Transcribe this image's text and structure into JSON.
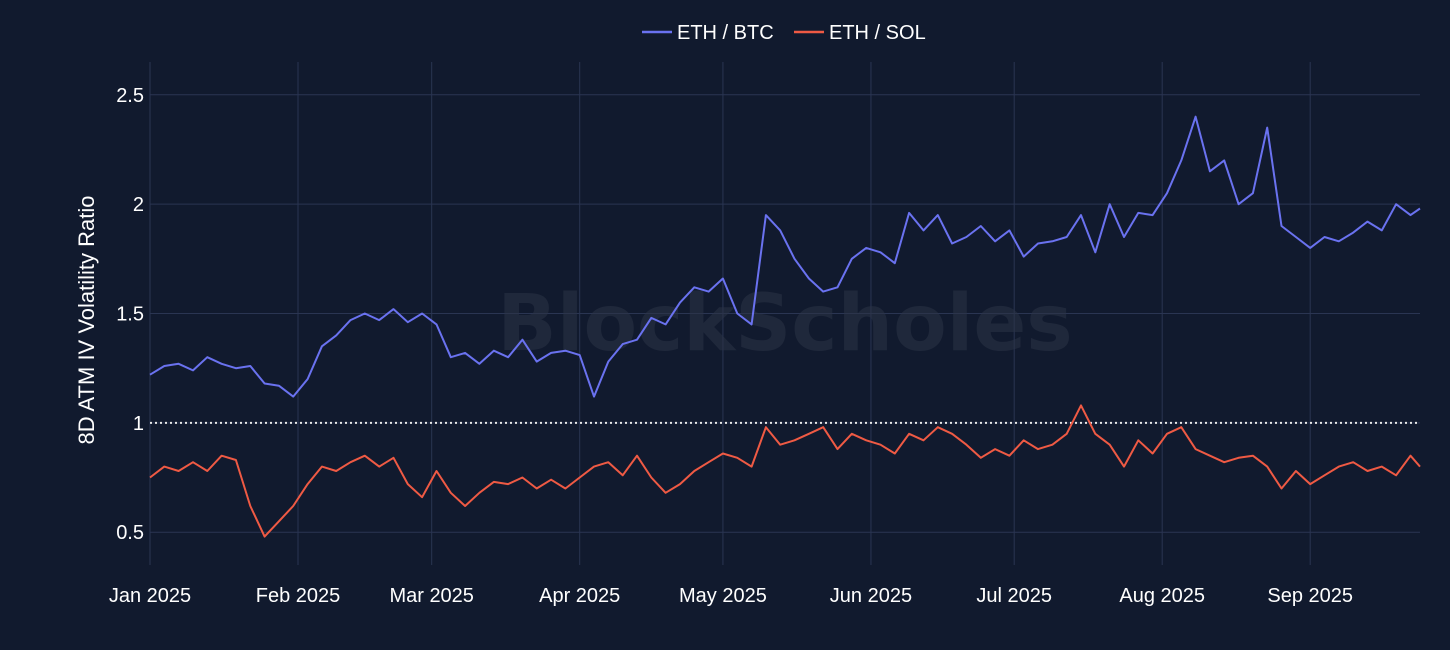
{
  "watermark": "BlockScholes",
  "colors": {
    "background": "#111a2e",
    "grid": "#2a3552",
    "reference_line": "#e8e8e8",
    "eth_btc": "#6a72f0",
    "eth_sol": "#ef5a44"
  },
  "chart_data": {
    "type": "line",
    "title": "",
    "xlabel": "",
    "ylabel": "8D ATM IV Volatility Ratio",
    "xlim": [
      "2025-01-01",
      "2025-09-24"
    ],
    "ylim": [
      0.35,
      2.65
    ],
    "x_ticks": [
      {
        "date": "2025-01-01",
        "label": "Jan 2025"
      },
      {
        "date": "2025-02-01",
        "label": "Feb 2025"
      },
      {
        "date": "2025-03-01",
        "label": "Mar 2025"
      },
      {
        "date": "2025-04-01",
        "label": "Apr 2025"
      },
      {
        "date": "2025-05-01",
        "label": "May 2025"
      },
      {
        "date": "2025-06-01",
        "label": "Jun 2025"
      },
      {
        "date": "2025-07-01",
        "label": "Jul 2025"
      },
      {
        "date": "2025-08-01",
        "label": "Aug 2025"
      },
      {
        "date": "2025-09-01",
        "label": "Sep 2025"
      }
    ],
    "y_ticks": [
      {
        "value": 0.5,
        "label": "0.5"
      },
      {
        "value": 1,
        "label": "1"
      },
      {
        "value": 1.5,
        "label": "1.5"
      },
      {
        "value": 2,
        "label": "2"
      },
      {
        "value": 2.5,
        "label": "2.5"
      }
    ],
    "reference_line": {
      "y": 1,
      "style": "dotted"
    },
    "grid": true,
    "legend": {
      "position": "top-center",
      "orientation": "horizontal"
    },
    "series": [
      {
        "name": "ETH / BTC",
        "color": "#6a72f0",
        "x": [
          "2025-01-01",
          "2025-01-04",
          "2025-01-07",
          "2025-01-10",
          "2025-01-13",
          "2025-01-16",
          "2025-01-19",
          "2025-01-22",
          "2025-01-25",
          "2025-01-28",
          "2025-01-31",
          "2025-02-03",
          "2025-02-06",
          "2025-02-09",
          "2025-02-12",
          "2025-02-15",
          "2025-02-18",
          "2025-02-21",
          "2025-02-24",
          "2025-02-27",
          "2025-03-02",
          "2025-03-05",
          "2025-03-08",
          "2025-03-11",
          "2025-03-14",
          "2025-03-17",
          "2025-03-20",
          "2025-03-23",
          "2025-03-26",
          "2025-03-29",
          "2025-04-01",
          "2025-04-04",
          "2025-04-07",
          "2025-04-10",
          "2025-04-13",
          "2025-04-16",
          "2025-04-19",
          "2025-04-22",
          "2025-04-25",
          "2025-04-28",
          "2025-05-01",
          "2025-05-04",
          "2025-05-07",
          "2025-05-10",
          "2025-05-13",
          "2025-05-16",
          "2025-05-19",
          "2025-05-22",
          "2025-05-25",
          "2025-05-28",
          "2025-05-31",
          "2025-06-03",
          "2025-06-06",
          "2025-06-09",
          "2025-06-12",
          "2025-06-15",
          "2025-06-18",
          "2025-06-21",
          "2025-06-24",
          "2025-06-27",
          "2025-06-30",
          "2025-07-03",
          "2025-07-06",
          "2025-07-09",
          "2025-07-12",
          "2025-07-15",
          "2025-07-18",
          "2025-07-21",
          "2025-07-24",
          "2025-07-27",
          "2025-07-30",
          "2025-08-02",
          "2025-08-05",
          "2025-08-08",
          "2025-08-11",
          "2025-08-14",
          "2025-08-17",
          "2025-08-20",
          "2025-08-23",
          "2025-08-26",
          "2025-08-29",
          "2025-09-01",
          "2025-09-04",
          "2025-09-07",
          "2025-09-10",
          "2025-09-13",
          "2025-09-16",
          "2025-09-19",
          "2025-09-22",
          "2025-09-24"
        ],
        "y": [
          1.22,
          1.26,
          1.27,
          1.24,
          1.3,
          1.27,
          1.25,
          1.26,
          1.18,
          1.17,
          1.12,
          1.2,
          1.35,
          1.4,
          1.47,
          1.5,
          1.47,
          1.52,
          1.46,
          1.5,
          1.45,
          1.3,
          1.32,
          1.27,
          1.33,
          1.3,
          1.38,
          1.28,
          1.32,
          1.33,
          1.31,
          1.12,
          1.28,
          1.36,
          1.38,
          1.48,
          1.45,
          1.55,
          1.62,
          1.6,
          1.66,
          1.5,
          1.45,
          1.95,
          1.88,
          1.75,
          1.66,
          1.6,
          1.62,
          1.75,
          1.8,
          1.78,
          1.73,
          1.96,
          1.88,
          1.95,
          1.82,
          1.85,
          1.9,
          1.83,
          1.88,
          1.76,
          1.82,
          1.83,
          1.85,
          1.95,
          1.78,
          2.0,
          1.85,
          1.96,
          1.95,
          2.05,
          2.2,
          2.4,
          2.15,
          2.2,
          2.0,
          2.05,
          2.35,
          1.9,
          1.85,
          1.8,
          1.85,
          1.83,
          1.87,
          1.92,
          1.88,
          2.0,
          1.95,
          1.98
        ]
      },
      {
        "name": "ETH / SOL",
        "color": "#ef5a44",
        "x": [
          "2025-01-01",
          "2025-01-04",
          "2025-01-07",
          "2025-01-10",
          "2025-01-13",
          "2025-01-16",
          "2025-01-19",
          "2025-01-22",
          "2025-01-25",
          "2025-01-28",
          "2025-01-31",
          "2025-02-03",
          "2025-02-06",
          "2025-02-09",
          "2025-02-12",
          "2025-02-15",
          "2025-02-18",
          "2025-02-21",
          "2025-02-24",
          "2025-02-27",
          "2025-03-02",
          "2025-03-05",
          "2025-03-08",
          "2025-03-11",
          "2025-03-14",
          "2025-03-17",
          "2025-03-20",
          "2025-03-23",
          "2025-03-26",
          "2025-03-29",
          "2025-04-01",
          "2025-04-04",
          "2025-04-07",
          "2025-04-10",
          "2025-04-13",
          "2025-04-16",
          "2025-04-19",
          "2025-04-22",
          "2025-04-25",
          "2025-04-28",
          "2025-05-01",
          "2025-05-04",
          "2025-05-07",
          "2025-05-10",
          "2025-05-13",
          "2025-05-16",
          "2025-05-19",
          "2025-05-22",
          "2025-05-25",
          "2025-05-28",
          "2025-05-31",
          "2025-06-03",
          "2025-06-06",
          "2025-06-09",
          "2025-06-12",
          "2025-06-15",
          "2025-06-18",
          "2025-06-21",
          "2025-06-24",
          "2025-06-27",
          "2025-06-30",
          "2025-07-03",
          "2025-07-06",
          "2025-07-09",
          "2025-07-12",
          "2025-07-15",
          "2025-07-18",
          "2025-07-21",
          "2025-07-24",
          "2025-07-27",
          "2025-07-30",
          "2025-08-02",
          "2025-08-05",
          "2025-08-08",
          "2025-08-11",
          "2025-08-14",
          "2025-08-17",
          "2025-08-20",
          "2025-08-23",
          "2025-08-26",
          "2025-08-29",
          "2025-09-01",
          "2025-09-04",
          "2025-09-07",
          "2025-09-10",
          "2025-09-13",
          "2025-09-16",
          "2025-09-19",
          "2025-09-22",
          "2025-09-24"
        ],
        "y": [
          0.75,
          0.8,
          0.78,
          0.82,
          0.78,
          0.85,
          0.83,
          0.62,
          0.48,
          0.55,
          0.62,
          0.72,
          0.8,
          0.78,
          0.82,
          0.85,
          0.8,
          0.84,
          0.72,
          0.66,
          0.78,
          0.68,
          0.62,
          0.68,
          0.73,
          0.72,
          0.75,
          0.7,
          0.74,
          0.7,
          0.75,
          0.8,
          0.82,
          0.76,
          0.85,
          0.75,
          0.68,
          0.72,
          0.78,
          0.82,
          0.86,
          0.84,
          0.8,
          0.98,
          0.9,
          0.92,
          0.95,
          0.98,
          0.88,
          0.95,
          0.92,
          0.9,
          0.86,
          0.95,
          0.92,
          0.98,
          0.95,
          0.9,
          0.84,
          0.88,
          0.85,
          0.92,
          0.88,
          0.9,
          0.95,
          1.08,
          0.95,
          0.9,
          0.8,
          0.92,
          0.86,
          0.95,
          0.98,
          0.88,
          0.85,
          0.82,
          0.84,
          0.85,
          0.8,
          0.7,
          0.78,
          0.72,
          0.76,
          0.8,
          0.82,
          0.78,
          0.8,
          0.76,
          0.85,
          0.8
        ]
      }
    ]
  }
}
